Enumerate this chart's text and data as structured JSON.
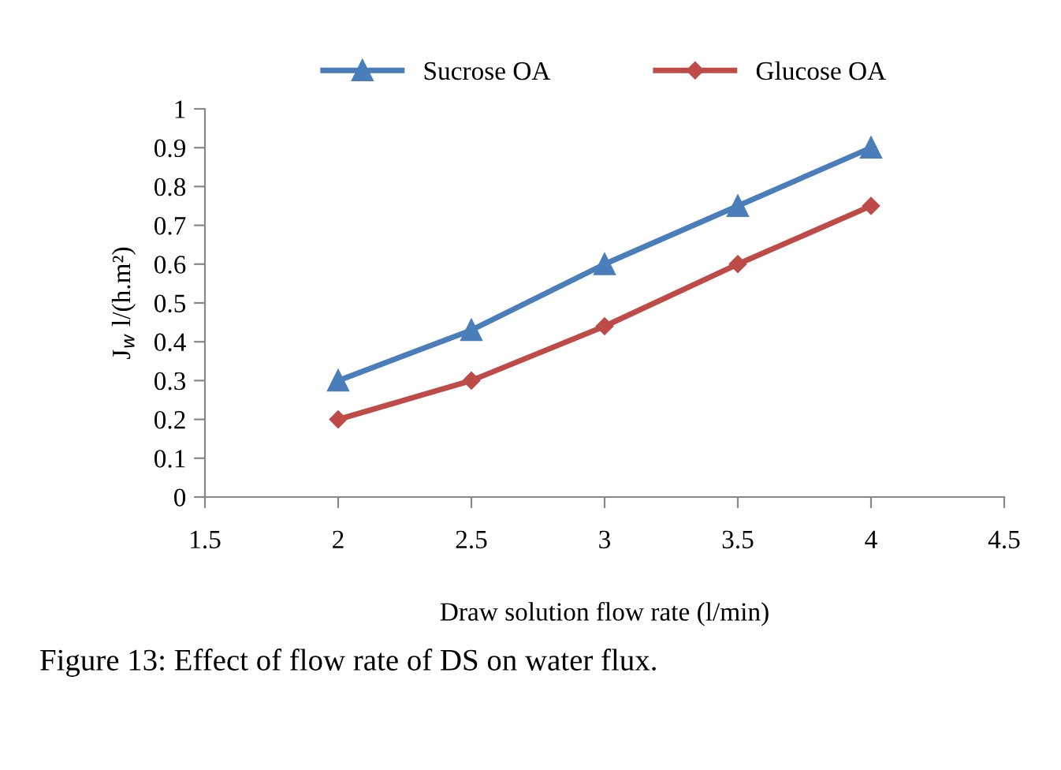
{
  "chart_data": {
    "type": "line",
    "xlabel": "Draw solution flow rate (l/min)",
    "ylabel": "J$_{w}$ l/(h.m²)",
    "x": [
      2,
      2.5,
      3,
      3.5,
      4
    ],
    "series": [
      {
        "name": "Sucrose OA",
        "color": "#4a7ebb",
        "values": [
          0.3,
          0.43,
          0.6,
          0.75,
          0.9
        ],
        "marker": "triangle"
      },
      {
        "name": "Glucose OA",
        "color": "#be4b48",
        "values": [
          0.2,
          0.3,
          0.44,
          0.6,
          0.75
        ],
        "marker": "diamond"
      }
    ],
    "xlim": [
      1.5,
      4.5
    ],
    "xticks": [
      1.5,
      2,
      2.5,
      3,
      3.5,
      4,
      4.5
    ],
    "ylim": [
      0,
      1
    ],
    "yticks": [
      0,
      0.1,
      0.2,
      0.3,
      0.4,
      0.5,
      0.6,
      0.7,
      0.8,
      0.9,
      1
    ],
    "grid": false,
    "legend": "top",
    "line_style": "solid",
    "annotations": [
      "Figure 13: Effect of flow rate of DS on water flux."
    ]
  }
}
